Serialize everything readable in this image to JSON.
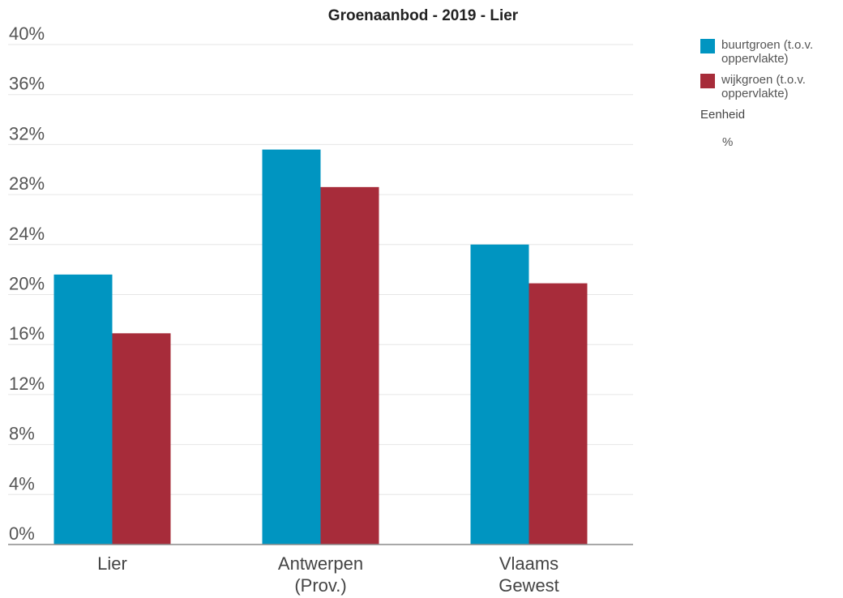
{
  "chart_data": {
    "type": "bar",
    "title": "Groenaanbod - 2019 - Lier",
    "categories": [
      [
        "Lier"
      ],
      [
        "Antwerpen",
        "(Prov.)"
      ],
      [
        "Vlaams",
        "Gewest"
      ]
    ],
    "series": [
      {
        "name": "buurtgroen (t.o.v. oppervlakte)",
        "color": "#0095c1",
        "values": [
          21.6,
          31.6,
          24.0
        ]
      },
      {
        "name": "wijkgroen (t.o.v. oppervlakte)",
        "color": "#a72c3a",
        "values": [
          16.9,
          28.6,
          20.9
        ]
      }
    ],
    "ylim": [
      0,
      40
    ],
    "yticks": [
      "0%",
      "4%",
      "8%",
      "12%",
      "16%",
      "20%",
      "24%",
      "28%",
      "32%",
      "36%",
      "40%"
    ],
    "grid": true,
    "legend_position": "top-right"
  },
  "legend": {
    "items": [
      {
        "label_lines": [
          "buurtgroen (t.o.v.",
          "oppervlakte)"
        ]
      },
      {
        "label_lines": [
          "wijkgroen (t.o.v.",
          "oppervlakte)"
        ]
      }
    ],
    "unit_title": "Eenheid",
    "unit_value": "%"
  }
}
